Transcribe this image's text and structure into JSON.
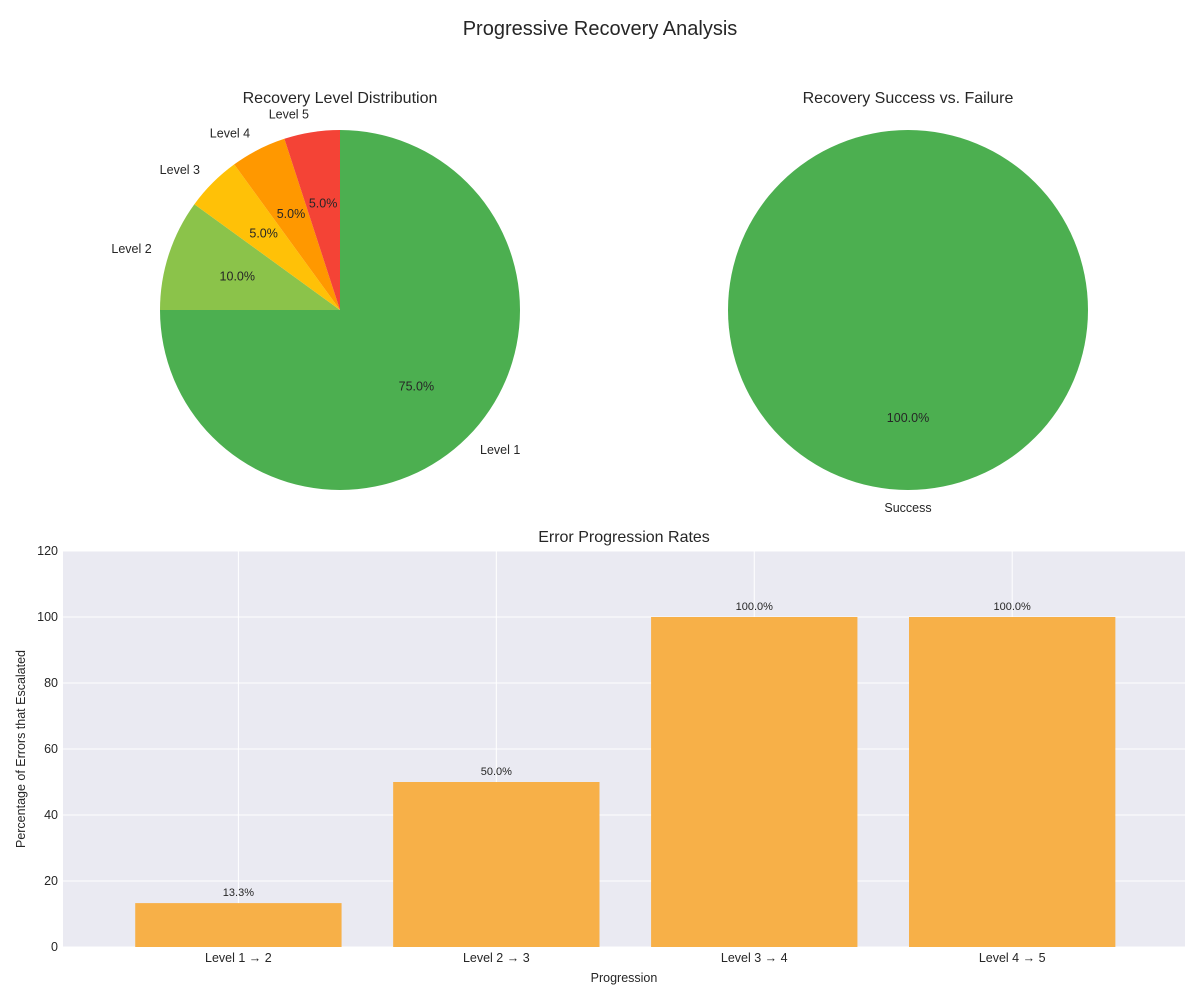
{
  "figure_title": "Progressive Recovery Analysis",
  "colors": {
    "level1": "#4caf50",
    "level2": "#8bc34a",
    "level3": "#ffc107",
    "level4": "#ff9800",
    "level5": "#f44336",
    "success": "#4caf50",
    "bar": "#f7b048",
    "axes_bg": "#eaeaf2"
  },
  "chart_data": [
    {
      "type": "pie",
      "title": "Recovery Level Distribution",
      "labels": [
        "Level 1",
        "Level 2",
        "Level 3",
        "Level 4",
        "Level 5"
      ],
      "values": [
        75,
        10,
        5,
        5,
        5
      ],
      "value_labels": [
        "75.0%",
        "10.0%",
        "5.0%",
        "5.0%",
        "5.0%"
      ],
      "start_angle_deg": 90,
      "direction": "clockwise"
    },
    {
      "type": "pie",
      "title": "Recovery Success vs. Failure",
      "labels": [
        "Success"
      ],
      "values": [
        100
      ],
      "value_labels": [
        "100.0%"
      ],
      "start_angle_deg": 90,
      "direction": "clockwise"
    },
    {
      "type": "bar",
      "title": "Error Progression Rates",
      "categories": [
        "Level 1 → 2",
        "Level 2 → 3",
        "Level 3 → 4",
        "Level 4 → 5"
      ],
      "values": [
        13.3,
        50.0,
        100.0,
        100.0
      ],
      "value_labels": [
        "13.3%",
        "50.0%",
        "100.0%",
        "100.0%"
      ],
      "xlabel": "Progression",
      "ylabel": "Percentage of Errors that Escalated",
      "ylim": [
        0,
        120
      ],
      "yticks": [
        "0",
        "20",
        "40",
        "60",
        "80",
        "100",
        "120"
      ],
      "grid": true
    }
  ]
}
